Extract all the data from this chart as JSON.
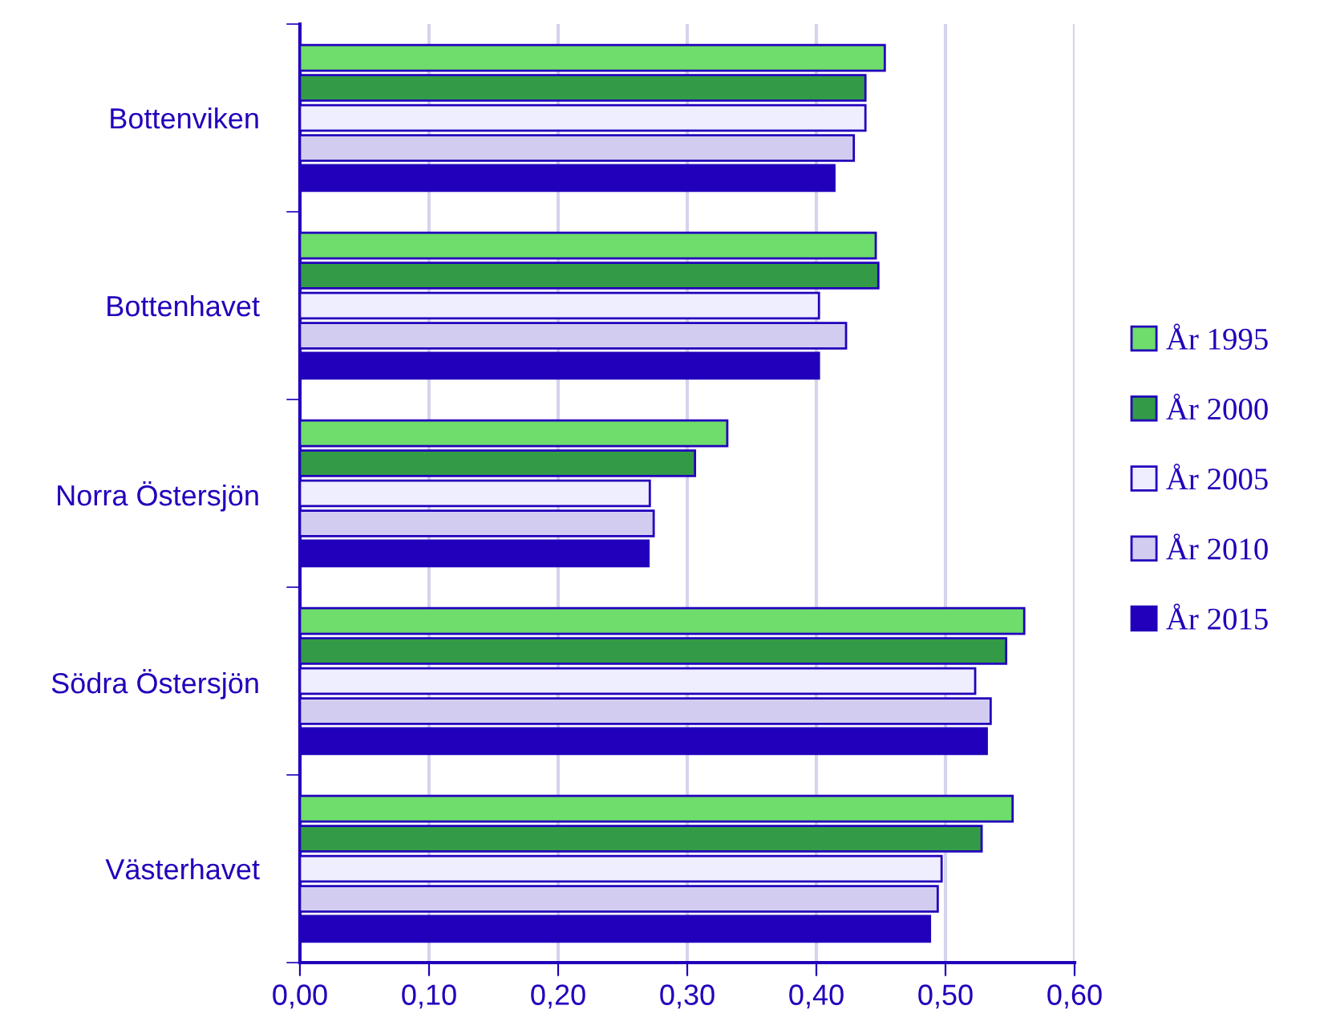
{
  "chart_data": {
    "type": "bar",
    "orientation": "horizontal",
    "categories": [
      "Bottenviken",
      "Bottenhavet",
      "Norra Östersjön",
      "Södra Östersjön",
      "Västerhavet"
    ],
    "series": [
      {
        "name": "År 1995",
        "color": "#6fdd6b",
        "values": [
          0.453,
          0.446,
          0.331,
          0.561,
          0.552
        ]
      },
      {
        "name": "År 2000",
        "color": "#339b47",
        "values": [
          0.438,
          0.448,
          0.306,
          0.547,
          0.528
        ]
      },
      {
        "name": "År 2005",
        "color": "#eeeeff",
        "values": [
          0.438,
          0.402,
          0.271,
          0.523,
          0.497
        ]
      },
      {
        "name": "År 2010",
        "color": "#d2cdf0",
        "values": [
          0.429,
          0.423,
          0.274,
          0.535,
          0.494
        ]
      },
      {
        "name": "År 2015",
        "color": "#2200bb",
        "values": [
          0.414,
          0.402,
          0.27,
          0.532,
          0.488
        ]
      }
    ],
    "xlim": [
      0,
      0.6
    ],
    "xticks": [
      {
        "value": 0,
        "label": "0,00"
      },
      {
        "value": 0.1,
        "label": "0,10"
      },
      {
        "value": 0.2,
        "label": "0,20"
      },
      {
        "value": 0.3,
        "label": "0,30"
      },
      {
        "value": 0.4,
        "label": "0,40"
      },
      {
        "value": 0.5,
        "label": "0,50"
      },
      {
        "value": 0.6,
        "label": "0,60"
      }
    ],
    "grid": "x",
    "legend": "right"
  }
}
